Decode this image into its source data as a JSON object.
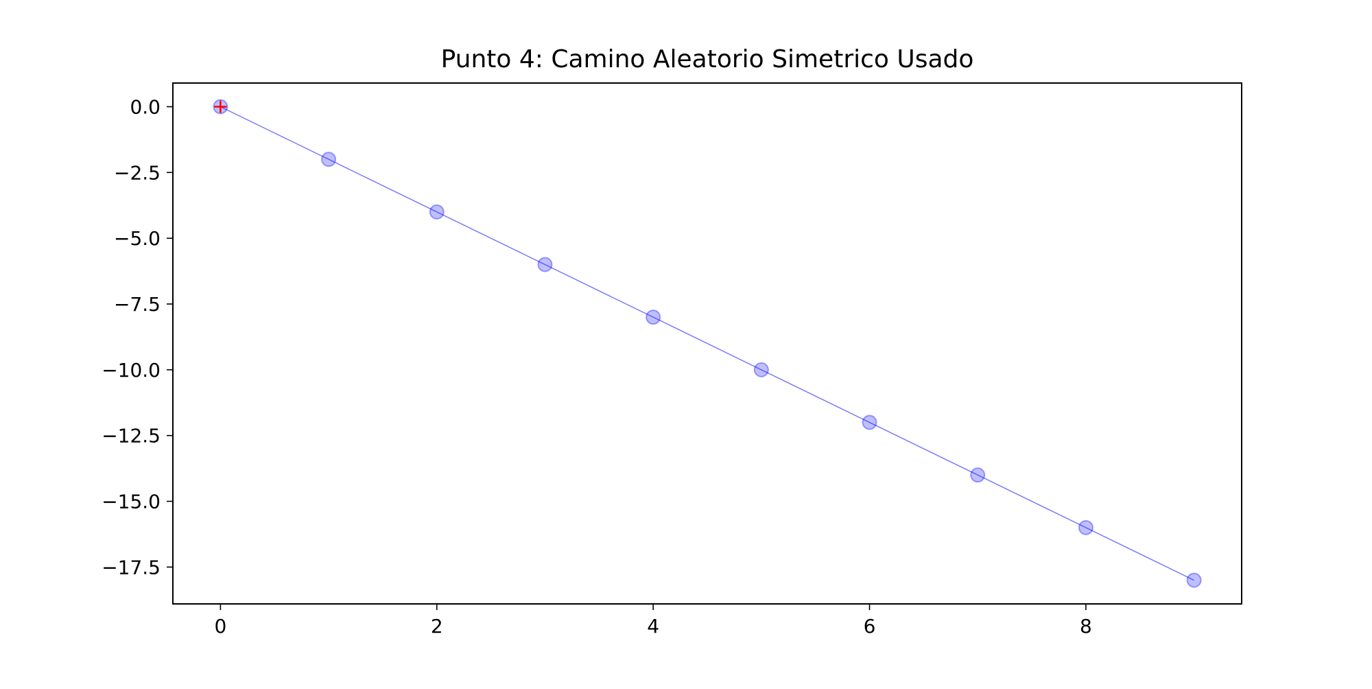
{
  "chart_data": {
    "type": "line",
    "title": "Punto 4: Camino Aleatorio Simetrico Usado",
    "xlabel": "",
    "ylabel": "",
    "xlim": [
      -0.44,
      9.44
    ],
    "ylim": [
      -18.9,
      0.9
    ],
    "x_ticks": [
      0,
      2,
      4,
      6,
      8
    ],
    "x_tick_labels": [
      "0",
      "2",
      "4",
      "6",
      "8"
    ],
    "y_ticks": [
      0.0,
      -2.5,
      -5.0,
      -7.5,
      -10.0,
      -12.5,
      -15.0,
      -17.5
    ],
    "y_tick_labels": [
      "0.0",
      "−2.5",
      "−5.0",
      "−7.5",
      "−10.0",
      "−12.5",
      "−15.0",
      "−17.5"
    ],
    "grid": false,
    "legend": "none",
    "series": [
      {
        "x": [
          0,
          1,
          2,
          3,
          4,
          5,
          6,
          7,
          8,
          9
        ],
        "values": [
          0,
          -2,
          -4,
          -6,
          -8,
          -10,
          -12,
          -14,
          -16,
          -18
        ],
        "color": "#0000ff",
        "marker": "circle",
        "marker_alpha": 0.25,
        "line_alpha": 0.55
      }
    ],
    "start_marker": {
      "x": 0,
      "y": 0,
      "marker": "plus",
      "color": "#ff0000"
    }
  }
}
